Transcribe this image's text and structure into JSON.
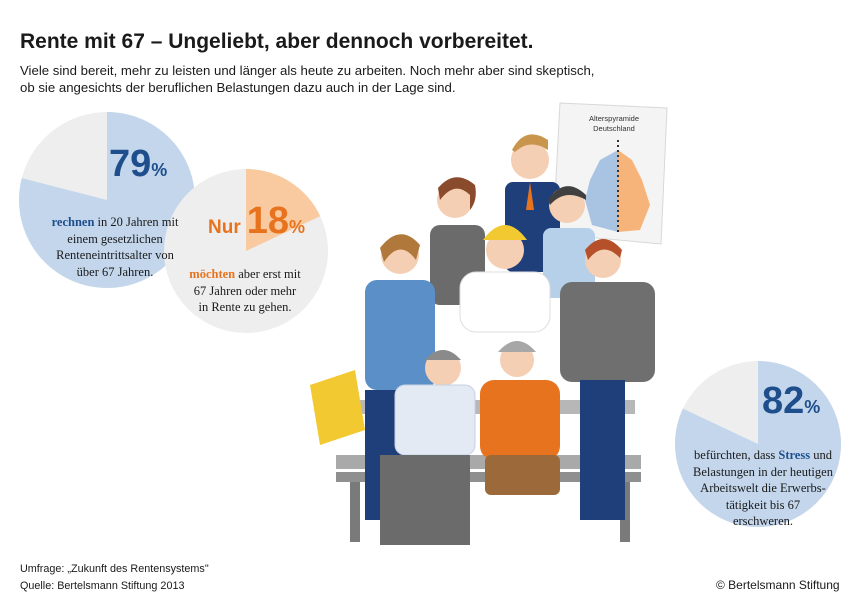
{
  "header": {
    "title": "Rente mit 67 – Ungeliebt, aber dennoch vorbereitet.",
    "subtitle_line1": "Viele sind bereit, mehr zu leisten und länger als heute zu arbeiten. Noch mehr aber sind skeptisch,",
    "subtitle_line2": "ob sie angesichts der beruflichen Belastungen dazu auch in der Lage sind."
  },
  "colors": {
    "blue": "#1e4f8c",
    "light_blue": "#c3d6ec",
    "orange": "#e8731e",
    "light_orange": "#f9c9a0",
    "grey": "#eeeeee"
  },
  "chart_data": [
    {
      "type": "pie",
      "value": 79,
      "value_label": "79",
      "prefix": "",
      "unit": "%",
      "text_bold": "rechnen",
      "text_lines": [
        "in 20 Jahren mit",
        "einem gesetzlichen",
        "Renteneintrittsalter von",
        "über 67 Jahren."
      ]
    },
    {
      "type": "pie",
      "value": 18,
      "value_label": "18",
      "prefix": "Nur",
      "unit": "%",
      "text_bold": "möchten",
      "text_lines": [
        "aber erst mit",
        "67 Jahren oder mehr",
        "in Rente zu gehen."
      ]
    },
    {
      "type": "pie",
      "value": 82,
      "value_label": "82",
      "prefix": "",
      "unit": "%",
      "text_lines": [
        "befürchten, dass",
        "Stress",
        "und",
        "Belastungen in der heutigen",
        "Arbeitswelt die Erwerbs-",
        "tätigkeit bis 67",
        "erschweren."
      ]
    }
  ],
  "illustration": {
    "poster_line1": "Alterspyramide",
    "poster_line2": "Deutschland"
  },
  "footer": {
    "survey": "Umfrage: „Zukunft des Rentensystems\"",
    "source": "Quelle: Bertelsmann Stiftung 2013",
    "copyright": "© Bertelsmann Stiftung"
  }
}
